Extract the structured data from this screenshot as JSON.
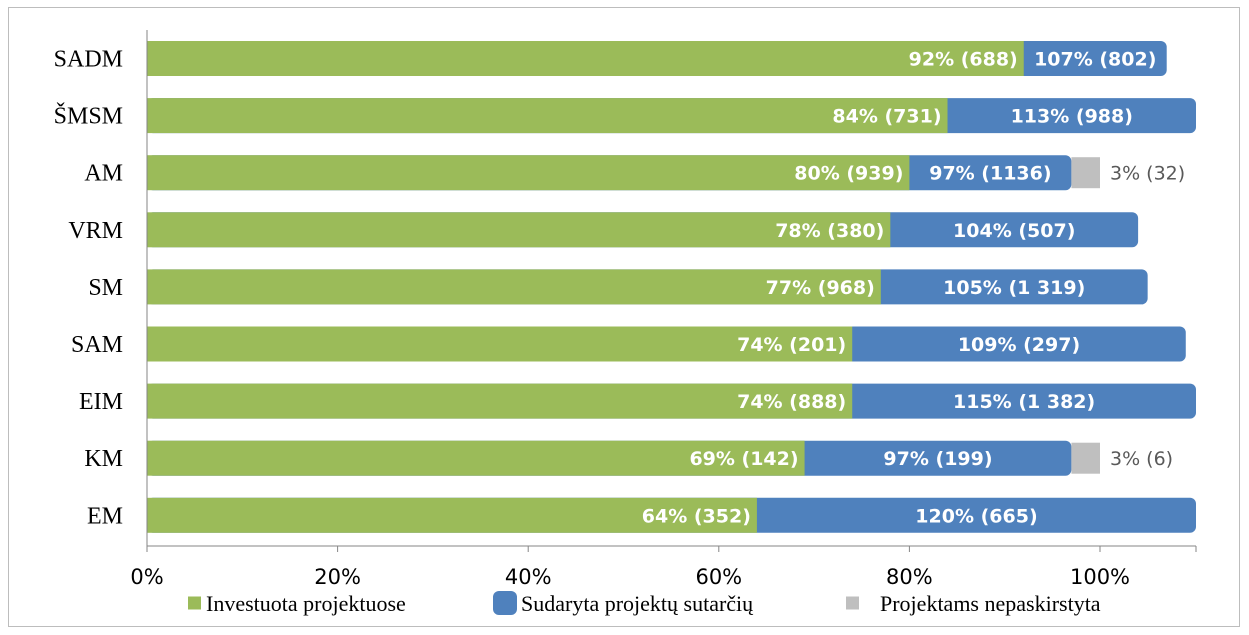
{
  "chart_data": {
    "type": "bar",
    "orientation": "horizontal",
    "categories": [
      "SADM",
      "ŠMSM",
      "AM",
      "VRM",
      "SM",
      "SAM",
      "EIM",
      "KM",
      "EM"
    ],
    "series": [
      {
        "name": "Investuota projektuose",
        "color": "#9bbb59",
        "values": [
          92,
          84,
          80,
          78,
          77,
          74,
          74,
          69,
          64
        ],
        "labels": [
          "92% (688)",
          "84% (731)",
          "80% (939)",
          "78% (380)",
          "77% (968)",
          "74% (201)",
          "74% (888)",
          "69% (142)",
          "64% (352)"
        ]
      },
      {
        "name": "Sudaryta projektų sutarčių",
        "color": "#4f81bd",
        "values": [
          107,
          113,
          97,
          104,
          105,
          109,
          115,
          97,
          120
        ],
        "labels": [
          "107% (802)",
          "113% (988)",
          "97% (1136)",
          "104% (507)",
          "105% (1 319)",
          "109% (297)",
          "115% (1 382)",
          "97% (199)",
          "120% (665)"
        ]
      },
      {
        "name": "Projektams nepaskirstyta",
        "color": "#bfbfbf",
        "values": [
          null,
          null,
          3,
          null,
          null,
          null,
          null,
          3,
          null
        ],
        "labels": [
          "",
          "",
          "3% (32)",
          "",
          "",
          "",
          "",
          "3% (6)",
          ""
        ]
      }
    ],
    "xlim": [
      0,
      110
    ],
    "xticks": [
      0,
      20,
      40,
      60,
      80,
      100
    ],
    "xtick_labels": [
      "0%",
      "20%",
      "40%",
      "60%",
      "80%",
      "100%"
    ],
    "grid": false,
    "legend_position": "bottom"
  }
}
